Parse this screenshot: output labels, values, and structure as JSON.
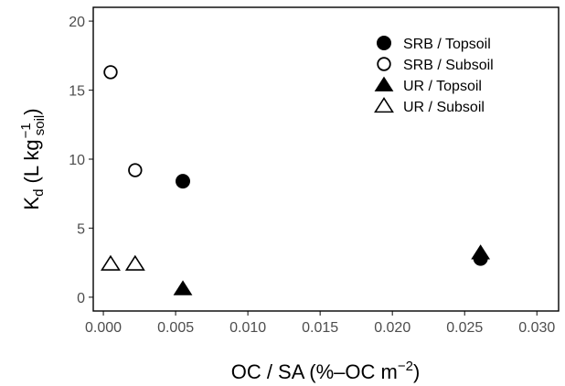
{
  "chart_data": {
    "type": "scatter",
    "title": "",
    "xlabel": {
      "main": "OC / SA (%–OC m",
      "sup": "−2",
      "close": ")"
    },
    "ylabel": {
      "k": "K",
      "k_sub": "d",
      "open": " (L kg",
      "kg_sup": "−1",
      "kg_sub": "soil",
      "close": ")"
    },
    "xlim": [
      -0.0007,
      0.0315
    ],
    "ylim": [
      -1.0,
      21.0
    ],
    "x_ticks": [
      0.0,
      0.005,
      0.01,
      0.015,
      0.02,
      0.025,
      0.03
    ],
    "x_tick_labels": [
      "0.000",
      "0.005",
      "0.010",
      "0.015",
      "0.020",
      "0.025",
      "0.030"
    ],
    "y_ticks": [
      0,
      5,
      10,
      15,
      20
    ],
    "y_tick_labels": [
      "0",
      "5",
      "10",
      "15",
      "20"
    ],
    "grid": false,
    "legend_position": "top-right",
    "series": [
      {
        "name": "SRB / Topsoil",
        "marker": "circle-filled",
        "points": [
          {
            "x": 0.0055,
            "y": 8.4
          },
          {
            "x": 0.0261,
            "y": 2.8
          }
        ]
      },
      {
        "name": "SRB / Subsoil",
        "marker": "circle-open",
        "points": [
          {
            "x": 0.0005,
            "y": 16.3
          },
          {
            "x": 0.0022,
            "y": 9.2
          }
        ]
      },
      {
        "name": "UR / Topsoil",
        "marker": "triangle-filled",
        "points": [
          {
            "x": 0.0055,
            "y": 0.6
          },
          {
            "x": 0.0261,
            "y": 3.2
          }
        ]
      },
      {
        "name": "UR / Subsoil",
        "marker": "triangle-open",
        "points": [
          {
            "x": 0.0005,
            "y": 2.4
          },
          {
            "x": 0.0022,
            "y": 2.4
          }
        ]
      }
    ]
  }
}
